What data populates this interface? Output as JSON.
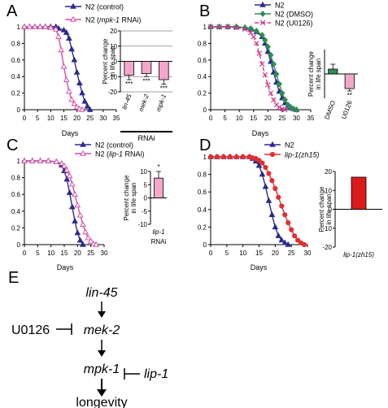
{
  "panels": [
    {
      "letter": "A",
      "main": {
        "type": "line",
        "xlabel": "Days",
        "ylabel": "",
        "xlim": [
          0,
          35
        ],
        "ylim": [
          0,
          1
        ],
        "xticks": [
          0,
          5,
          10,
          15,
          20,
          25,
          30,
          35
        ],
        "yticks": [
          0,
          0.2,
          0.4,
          0.6,
          0.8,
          1
        ],
        "legend": [
          {
            "text": "N2 (control)",
            "parts": [
              {
                "t": "N2 (control)",
                "i": false
              }
            ]
          },
          {
            "text": "N2 (mpk-1 RNAi)",
            "parts": [
              {
                "t": "N2 (",
                "i": false
              },
              {
                "t": "mpk-1",
                "i": true
              },
              {
                "t": " RNAi)",
                "i": false
              }
            ]
          }
        ],
        "series": [
          {
            "name": "N2 (control)",
            "color": "#2b2b8c",
            "marker": "triangle",
            "filled": true,
            "dashed": false,
            "x": [
              0,
              2,
              4,
              6,
              8,
              10,
              12,
              13,
              15,
              16,
              17,
              18,
              19,
              20,
              21,
              22,
              23,
              24,
              25
            ],
            "y": [
              1,
              1,
              1,
              1,
              1,
              1,
              1,
              0.98,
              0.96,
              0.93,
              0.86,
              0.73,
              0.6,
              0.45,
              0.32,
              0.2,
              0.1,
              0.04,
              0
            ]
          },
          {
            "name": "N2 (mpk-1 RNAi)",
            "color": "#d44fa6",
            "marker": "triangle",
            "filled": false,
            "dashed": false,
            "x": [
              0,
              2,
              4,
              6,
              8,
              10,
              12,
              13,
              14,
              15,
              16,
              17,
              18,
              19,
              20,
              21,
              22
            ],
            "y": [
              1,
              1,
              1,
              1,
              1,
              0.99,
              0.97,
              0.88,
              0.72,
              0.52,
              0.36,
              0.22,
              0.12,
              0.07,
              0.03,
              0.01,
              0
            ]
          }
        ]
      },
      "inset": {
        "type": "bar",
        "ylabel": "Percent change in life span",
        "ylim": [
          -20,
          20
        ],
        "yticks": [
          -20,
          -10,
          0,
          10,
          20
        ],
        "categories": [
          "lin-45",
          "mek-2",
          "mpk-1"
        ],
        "categories_italic": true,
        "group_label": "RNAi",
        "values": [
          -9,
          -8,
          -12
        ],
        "errors": [
          3,
          2,
          3
        ],
        "stars": [
          "***",
          "***",
          "***"
        ],
        "colors": [
          "#f4a6cd",
          "#f4a6cd",
          "#f4a6cd"
        ],
        "grid": true
      }
    },
    {
      "letter": "B",
      "main": {
        "type": "line",
        "xlabel": "Days",
        "ylabel": "",
        "xlim": [
          0,
          35
        ],
        "ylim": [
          0,
          1
        ],
        "xticks": [
          0,
          5,
          10,
          15,
          20,
          25,
          30,
          35
        ],
        "yticks": [
          0,
          0.2,
          0.4,
          0.6,
          0.8,
          1
        ],
        "legend": [
          {
            "text": "N2",
            "parts": [
              {
                "t": "N2",
                "i": false
              }
            ]
          },
          {
            "text": "N2 (DMSO)",
            "parts": [
              {
                "t": "N2 (DMSO)",
                "i": false
              }
            ]
          },
          {
            "text": "N2 (U0126)",
            "parts": [
              {
                "t": "N2 (U0126)",
                "i": false
              }
            ]
          }
        ],
        "series": [
          {
            "name": "N2",
            "color": "#2b2b8c",
            "marker": "triangle",
            "filled": true,
            "dashed": false,
            "x": [
              0,
              3,
              6,
              9,
              12,
              14,
              16,
              18,
              19,
              20,
              21,
              22,
              23,
              24,
              25,
              26,
              27,
              28,
              29,
              30
            ],
            "y": [
              1,
              1,
              1,
              1,
              0.99,
              0.97,
              0.94,
              0.88,
              0.8,
              0.7,
              0.58,
              0.45,
              0.33,
              0.22,
              0.14,
              0.08,
              0.04,
              0.02,
              0.01,
              0
            ]
          },
          {
            "name": "N2 (DMSO)",
            "color": "#2e8b57",
            "marker": "diamond",
            "filled": true,
            "dashed": false,
            "x": [
              0,
              3,
              6,
              9,
              12,
              14,
              16,
              18,
              19,
              20,
              21,
              22,
              23,
              24,
              25,
              26,
              27,
              28,
              29,
              30
            ],
            "y": [
              1,
              1,
              1,
              1,
              0.99,
              0.98,
              0.95,
              0.9,
              0.84,
              0.76,
              0.66,
              0.55,
              0.43,
              0.31,
              0.2,
              0.12,
              0.06,
              0.03,
              0.01,
              0
            ]
          },
          {
            "name": "N2 (U0126)",
            "color": "#d4388f",
            "marker": "cross",
            "filled": false,
            "dashed": true,
            "x": [
              0,
              3,
              6,
              9,
              12,
              14,
              15,
              16,
              17,
              18,
              19,
              20,
              21,
              22,
              23,
              24,
              25,
              26
            ],
            "y": [
              1,
              1,
              1,
              0.99,
              0.97,
              0.93,
              0.88,
              0.8,
              0.68,
              0.55,
              0.42,
              0.3,
              0.2,
              0.12,
              0.06,
              0.03,
              0.01,
              0
            ]
          }
        ]
      },
      "inset": {
        "type": "bar",
        "ylabel": "Percent change in life span",
        "ylim": [
          -20,
          20
        ],
        "yticks": [],
        "categories": [
          "DMSO",
          "U0126"
        ],
        "categories_italic": false,
        "group_label": "",
        "values": [
          4,
          -12
        ],
        "errors": [
          4,
          2
        ],
        "stars": [
          "",
          "**"
        ],
        "colors": [
          "#2e8b57",
          "#f4a6cd"
        ],
        "grid": false
      }
    },
    {
      "letter": "C",
      "main": {
        "type": "line",
        "xlabel": "Days",
        "ylabel": "",
        "xlim": [
          0,
          30
        ],
        "ylim": [
          0,
          1
        ],
        "xticks": [
          0,
          5,
          10,
          15,
          20,
          25,
          30
        ],
        "yticks": [
          0,
          0.2,
          0.4,
          0.6,
          0.8,
          1
        ],
        "legend": [
          {
            "text": "N2 (control)",
            "parts": [
              {
                "t": "N2 (control)",
                "i": false
              }
            ]
          },
          {
            "text": "N2 (lip-1 RNAi)",
            "parts": [
              {
                "t": "N2 (",
                "i": false
              },
              {
                "t": "lip-1",
                "i": true
              },
              {
                "t": " RNAi)",
                "i": false
              }
            ]
          }
        ],
        "series": [
          {
            "name": "N2 (control)",
            "color": "#2b2b8c",
            "marker": "triangle",
            "filled": true,
            "dashed": false,
            "x": [
              0,
              3,
              6,
              9,
              12,
              14,
              15,
              16,
              17,
              18,
              19,
              20,
              21,
              22
            ],
            "y": [
              1,
              1,
              1,
              1,
              0.99,
              0.95,
              0.88,
              0.78,
              0.62,
              0.45,
              0.28,
              0.14,
              0.05,
              0
            ]
          },
          {
            "name": "N2 (lip-1 RNAi)",
            "color": "#d44fa6",
            "marker": "triangle",
            "filled": false,
            "dashed": false,
            "x": [
              0,
              3,
              6,
              9,
              12,
              14,
              15,
              16,
              17,
              18,
              19,
              20,
              21,
              22,
              23,
              24,
              25,
              26,
              27
            ],
            "y": [
              1,
              1,
              1,
              1,
              0.99,
              0.97,
              0.94,
              0.89,
              0.82,
              0.72,
              0.6,
              0.47,
              0.35,
              0.24,
              0.15,
              0.08,
              0.04,
              0.01,
              0
            ]
          }
        ]
      },
      "inset": {
        "type": "bar",
        "ylabel": "Percent change in life span",
        "ylim": [
          -10,
          10
        ],
        "yticks": [
          -10,
          -5,
          0,
          5,
          10
        ],
        "categories": [
          "lip-1"
        ],
        "categories_italic": true,
        "group_label": "RNAi",
        "values": [
          7.5
        ],
        "errors": [
          2.5
        ],
        "stars": [
          "*"
        ],
        "colors": [
          "#f4a6cd"
        ],
        "grid": false
      }
    },
    {
      "letter": "D",
      "main": {
        "type": "line",
        "xlabel": "Days",
        "ylabel": "",
        "xlim": [
          0,
          30
        ],
        "ylim": [
          0,
          1
        ],
        "xticks": [
          0,
          5,
          10,
          15,
          20,
          25,
          30
        ],
        "yticks": [
          0,
          0.2,
          0.4,
          0.6,
          0.8,
          1
        ],
        "legend": [
          {
            "text": "N2",
            "parts": [
              {
                "t": "N2",
                "i": false
              }
            ]
          },
          {
            "text": "lip-1(zh15)",
            "parts": [
              {
                "t": "lip-1(zh15)",
                "i": true
              }
            ]
          }
        ],
        "series": [
          {
            "name": "N2",
            "color": "#2b2b8c",
            "marker": "triangle",
            "filled": true,
            "dashed": false,
            "x": [
              0,
              2,
              4,
              6,
              8,
              10,
              12,
              13,
              14,
              15,
              16,
              17,
              18,
              19,
              20,
              21,
              22,
              23,
              24
            ],
            "y": [
              1,
              1,
              1,
              1,
              1,
              1,
              1,
              0.98,
              0.95,
              0.9,
              0.8,
              0.66,
              0.5,
              0.34,
              0.2,
              0.1,
              0.05,
              0.02,
              0
            ]
          },
          {
            "name": "lip-1(zh15)",
            "color": "#e03030",
            "marker": "circle",
            "filled": true,
            "dashed": false,
            "x": [
              0,
              2,
              4,
              6,
              8,
              10,
              12,
              13,
              14,
              15,
              16,
              17,
              18,
              19,
              20,
              21,
              22,
              23,
              24,
              25,
              26,
              27,
              28,
              29
            ],
            "y": [
              1,
              1,
              1,
              1,
              1,
              1,
              1,
              0.99,
              0.98,
              0.96,
              0.93,
              0.88,
              0.81,
              0.73,
              0.64,
              0.54,
              0.44,
              0.34,
              0.25,
              0.17,
              0.1,
              0.05,
              0.02,
              0
            ]
          }
        ]
      },
      "inset": {
        "type": "bar",
        "ylabel": "Percent change in life span",
        "ylim": [
          -20,
          20
        ],
        "yticks": [
          -20,
          -10,
          0,
          10,
          20
        ],
        "categories": [
          "lip-1(zh15)"
        ],
        "categories_italic": true,
        "group_label": "",
        "values": [
          17
        ],
        "errors": [
          0
        ],
        "stars": [
          ""
        ],
        "colors": [
          "#dd1a1a"
        ],
        "grid": false
      }
    }
  ],
  "pathway": {
    "letter": "E",
    "nodes": {
      "lin45": "lin-45",
      "mek2": "mek-2",
      "mpk1": "mpk-1",
      "lip1": "lip-1",
      "u0126": "U0126",
      "longevity": "longevity"
    }
  },
  "colors": {
    "axis": "#000000",
    "grid": "#808080"
  }
}
